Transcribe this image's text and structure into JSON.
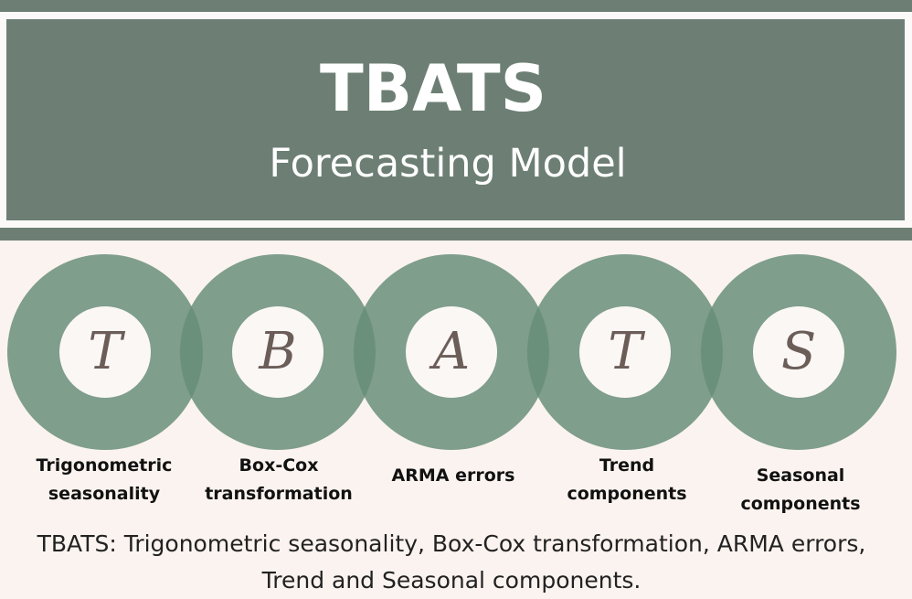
{
  "header": {
    "title": "TBATS",
    "subtitle": "Forecasting Model"
  },
  "components": [
    {
      "letter": "T",
      "label_line1": "Trigonometric",
      "label_line2": "seasonality"
    },
    {
      "letter": "B",
      "label_line1": "Box-Cox",
      "label_line2": "transformation"
    },
    {
      "letter": "A",
      "label_line1": "ARMA errors",
      "label_line2": ""
    },
    {
      "letter": "T",
      "label_line1": "Trend",
      "label_line2": "components"
    },
    {
      "letter": "S",
      "label_line1": "Seasonal",
      "label_line2": "components"
    }
  ],
  "caption": "TBATS: Trigonometric seasonality, Box-Cox transformation, ARMA errors, Trend and Seasonal components.",
  "colors": {
    "banner": "#6d7f74",
    "ring": "#678e78",
    "background": "#fbf3ef",
    "letter": "#6b5d58"
  }
}
